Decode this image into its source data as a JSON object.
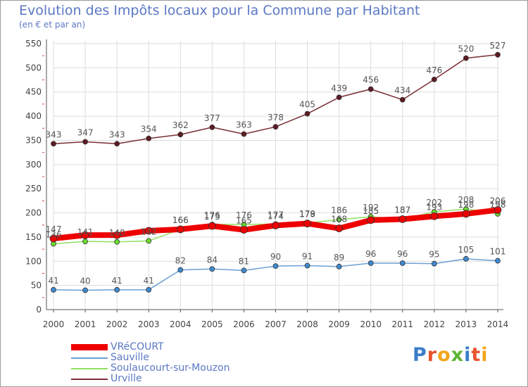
{
  "title": "Evolution des Impôts locaux pour la Commune par Habitant",
  "subtitle": "(en € et par an)",
  "logo_text": "Proxiti",
  "colors": {
    "title": "#5b78c4",
    "axis": "#555555",
    "grid": "#dddddd"
  },
  "chart_data": {
    "type": "line",
    "title": "Evolution des Impôts locaux pour la Commune par Habitant",
    "ylabel": "(en € et par an)",
    "xlabel": "",
    "ylim": [
      0,
      550
    ],
    "yticks": [
      0,
      50,
      100,
      150,
      200,
      250,
      300,
      350,
      400,
      450,
      500,
      550
    ],
    "x": [
      "2000",
      "2001",
      "2002",
      "2003",
      "2004",
      "2005",
      "2006",
      "2007",
      "2008",
      "2009",
      "2010",
      "2011",
      "2012",
      "2013",
      "2014"
    ],
    "grid": true,
    "legend_position": "bottom-left",
    "series": [
      {
        "name": "VRéCOURT",
        "color": "#ee0000",
        "marker": "#ee0000",
        "values": [
          147,
          154,
          154,
          163,
          166,
          173,
          165,
          174,
          178,
          168,
          185,
          187,
          193,
          198,
          206
        ],
        "labels": [
          "147",
          "",
          "",
          "",
          "166",
          "173",
          "165",
          "174",
          "178",
          "168",
          "185",
          "187",
          "193",
          "198",
          "206"
        ]
      },
      {
        "name": "Sauville",
        "color": "#6c9fd4",
        "marker": "#3e8ad0",
        "values": [
          41,
          40,
          41,
          41,
          82,
          84,
          81,
          90,
          91,
          89,
          96,
          96,
          95,
          105,
          101
        ],
        "labels": [
          "41",
          "40",
          "41",
          "41",
          "82",
          "84",
          "81",
          "90",
          "91",
          "89",
          "96",
          "96",
          "95",
          "105",
          "101"
        ]
      },
      {
        "name": "Soulaucourt-sur-Mouzon",
        "color": "#8fe061",
        "marker": "#6cd830",
        "values": [
          136,
          141,
          140,
          142,
          166,
          176,
          176,
          177,
          179,
          186,
          192,
          187,
          202,
          208,
          198
        ],
        "labels": [
          "136",
          "141",
          "140",
          "142",
          "166",
          "176",
          "176",
          "177",
          "179",
          "186",
          "192",
          "187",
          "202",
          "208",
          "198"
        ]
      },
      {
        "name": "Urville",
        "color": "#7a2e34",
        "marker": "#5e1c22",
        "values": [
          343,
          347,
          343,
          354,
          362,
          377,
          363,
          378,
          405,
          439,
          456,
          434,
          476,
          520,
          527
        ],
        "labels": [
          "343",
          "347",
          "343",
          "354",
          "362",
          "377",
          "363",
          "378",
          "405",
          "439",
          "456",
          "434",
          "476",
          "520",
          "527"
        ]
      }
    ]
  }
}
